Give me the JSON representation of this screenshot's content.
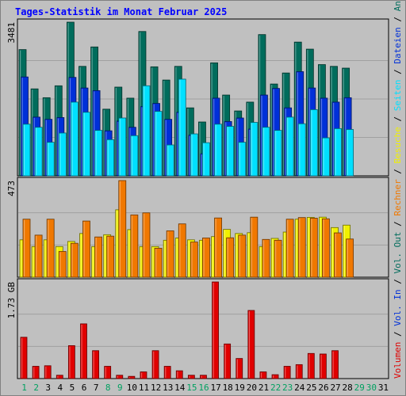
{
  "title": "Tages-Statistik im Monat Februar 2025",
  "colors": {
    "anfragen": "#006c5c",
    "dateien": "#0030d8",
    "seiten": "#00e0ff",
    "besuche": "#f0f000",
    "rechner": "#f07800",
    "volumen": "#e00000",
    "weekday": "#006c5c",
    "weekend": "#00a060",
    "grid": "#a0a0a0"
  },
  "chart_data": [
    {
      "type": "bar",
      "panel": "hits",
      "ytick": "3481",
      "ylim": [
        0,
        3481
      ],
      "categories": [
        "1",
        "2",
        "3",
        "4",
        "5",
        "6",
        "7",
        "8",
        "9",
        "10",
        "11",
        "12",
        "13",
        "14",
        "15",
        "16",
        "17",
        "18",
        "19",
        "20",
        "21",
        "22",
        "23",
        "24",
        "25",
        "26",
        "27",
        "28",
        "29",
        "30",
        "31"
      ],
      "series": [
        {
          "name": "Anfragen",
          "values": [
            2860,
            1970,
            1770,
            2040,
            3481,
            2480,
            2920,
            1510,
            2010,
            1760,
            3270,
            2470,
            2170,
            2480,
            1540,
            1220,
            2560,
            1830,
            1470,
            1670,
            3200,
            2080,
            2330,
            3030,
            2870,
            2520,
            2480,
            2440,
            null,
            null,
            null
          ]
        },
        {
          "name": "Dateien",
          "values": [
            2240,
            1330,
            1280,
            1320,
            2230,
            1990,
            1930,
            1020,
            1240,
            1100,
            1570,
            1640,
            1280,
            1440,
            920,
            500,
            1760,
            1230,
            1310,
            1060,
            1830,
            1980,
            1540,
            2360,
            1990,
            1760,
            1670,
            1770,
            null,
            null,
            null
          ]
        },
        {
          "name": "Seiten",
          "values": [
            1170,
            1100,
            760,
            970,
            1670,
            1440,
            1030,
            820,
            1310,
            910,
            2040,
            1460,
            700,
            2190,
            950,
            750,
            1170,
            1120,
            760,
            1210,
            1100,
            1030,
            1330,
            1180,
            1500,
            860,
            1070,
            1050,
            null,
            null,
            null
          ]
        }
      ]
    },
    {
      "type": "bar",
      "panel": "visits",
      "ytick": "473",
      "ylim": [
        0,
        473
      ],
      "categories": [
        "1",
        "2",
        "3",
        "4",
        "5",
        "6",
        "7",
        "8",
        "9",
        "10",
        "11",
        "12",
        "13",
        "14",
        "15",
        "16",
        "17",
        "18",
        "19",
        "20",
        "21",
        "22",
        "23",
        "24",
        "25",
        "26",
        "27",
        "28",
        "29",
        "30",
        "31"
      ],
      "series": [
        {
          "name": "Besuche",
          "values": [
            183,
            150,
            183,
            150,
            175,
            214,
            150,
            208,
            330,
            233,
            150,
            150,
            181,
            192,
            183,
            181,
            199,
            234,
            214,
            218,
            150,
            190,
            221,
            284,
            293,
            294,
            243,
            255,
            null,
            null,
            null
          ]
        },
        {
          "name": "Rechner",
          "values": [
            284,
            206,
            284,
            126,
            166,
            275,
            197,
            201,
            473,
            305,
            315,
            142,
            227,
            261,
            172,
            192,
            290,
            193,
            206,
            294,
            185,
            181,
            284,
            292,
            289,
            286,
            217,
            187,
            null,
            null,
            null
          ]
        }
      ]
    },
    {
      "type": "bar",
      "panel": "volume",
      "ytick": "1.73 GB",
      "ylim": [
        0,
        1.73
      ],
      "categories": [
        "1",
        "2",
        "3",
        "4",
        "5",
        "6",
        "7",
        "8",
        "9",
        "10",
        "11",
        "12",
        "13",
        "14",
        "15",
        "16",
        "17",
        "18",
        "19",
        "20",
        "21",
        "22",
        "23",
        "24",
        "25",
        "26",
        "27",
        "28",
        "29",
        "30",
        "31"
      ],
      "series": [
        {
          "name": "Volumen",
          "values": [
            0.74,
            0.22,
            0.23,
            0.06,
            0.59,
            0.98,
            0.5,
            0.22,
            0.06,
            0.04,
            0.12,
            0.5,
            0.22,
            0.14,
            0.06,
            0.06,
            1.73,
            0.62,
            0.36,
            1.22,
            0.12,
            0.07,
            0.22,
            0.25,
            0.45,
            0.44,
            0.5,
            null,
            null,
            null,
            null
          ]
        }
      ]
    }
  ],
  "legend_right": [
    {
      "label": "Volumen",
      "color": "#e00000"
    },
    {
      "label": " / ",
      "color": "#000000"
    },
    {
      "label": "Vol. In",
      "color": "#0030d8"
    },
    {
      "label": " / ",
      "color": "#000000"
    },
    {
      "label": "Vol. Out",
      "color": "#006c5c"
    },
    {
      "label": " / ",
      "color": "#000000"
    },
    {
      "label": "Rechner",
      "color": "#f07800"
    },
    {
      "label": " / ",
      "color": "#000000"
    },
    {
      "label": "Besuche",
      "color": "#f0f000"
    },
    {
      "label": " / ",
      "color": "#000000"
    },
    {
      "label": "Seiten",
      "color": "#00e0ff"
    },
    {
      "label": " / ",
      "color": "#000000"
    },
    {
      "label": "Dateien",
      "color": "#0030d8"
    },
    {
      "label": " / ",
      "color": "#000000"
    },
    {
      "label": "Anfragen",
      "color": "#006c5c"
    }
  ],
  "weekend_days": [
    "1",
    "2",
    "8",
    "9",
    "15",
    "16",
    "22",
    "23",
    "29",
    "30"
  ]
}
